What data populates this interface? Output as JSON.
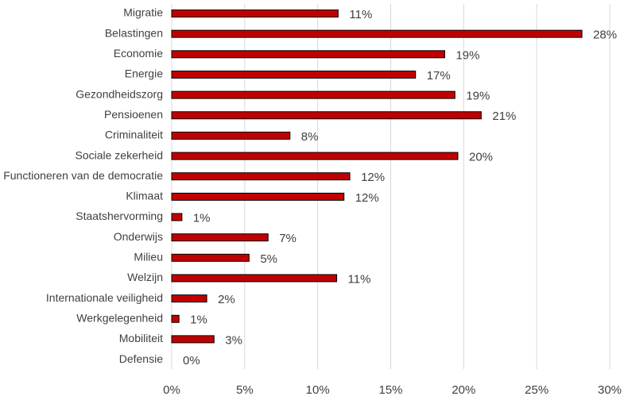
{
  "chart_data": {
    "type": "barh",
    "categories": [
      "Migratie",
      "Belastingen",
      "Economie",
      "Energie",
      "Gezondheidszorg",
      "Pensioenen",
      "Criminaliteit",
      "Sociale zekerheid",
      "Functioneren van de democratie",
      "Klimaat",
      "Staatshervorming",
      "Onderwijs",
      "Milieu",
      "Welzijn",
      "Internationale veiligheid",
      "Werkgelegenheid",
      "Mobiliteit",
      "Defensie"
    ],
    "values": [
      11.4,
      28.1,
      18.7,
      16.7,
      19.4,
      21.2,
      8.1,
      19.6,
      12.2,
      11.8,
      0.7,
      6.6,
      5.3,
      11.3,
      2.4,
      0.5,
      2.9,
      0
    ],
    "value_labels": [
      "11%",
      "28%",
      "19%",
      "17%",
      "19%",
      "21%",
      "8%",
      "20%",
      "12%",
      "12%",
      "1%",
      "7%",
      "5%",
      "11%",
      "2%",
      "1%",
      "3%",
      "0%"
    ],
    "color": "#c00000",
    "xlim": [
      0,
      30
    ],
    "xticks": [
      {
        "value": 0,
        "label": "0%"
      },
      {
        "value": 5,
        "label": "5%"
      },
      {
        "value": 10,
        "label": "10%"
      },
      {
        "value": 15,
        "label": "15%"
      },
      {
        "value": 20,
        "label": "20%"
      },
      {
        "value": 25,
        "label": "25%"
      },
      {
        "value": 30,
        "label": "30%"
      }
    ],
    "grid": true
  }
}
